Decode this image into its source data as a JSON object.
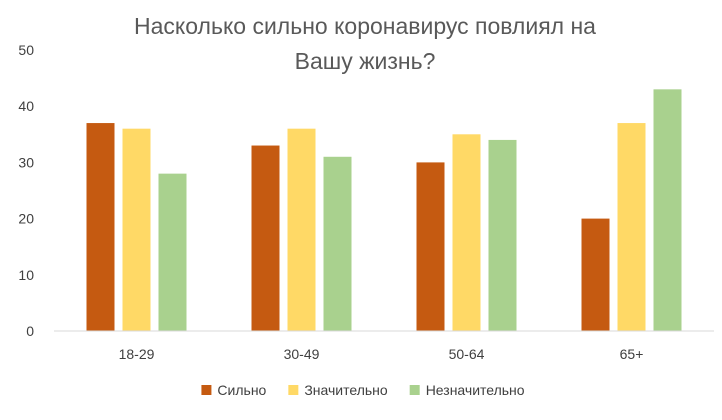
{
  "chart_data": {
    "type": "bar",
    "title_lines": [
      "Насколько сильно коронавирус повлиял на",
      "Вашу жизнь?"
    ],
    "categories": [
      "18-29",
      "30-49",
      "50-64",
      "65+"
    ],
    "series": [
      {
        "name": "Сильно",
        "color": "#C55A11",
        "values": [
          37,
          33,
          30,
          20
        ]
      },
      {
        "name": "Значительно",
        "color": "#FFD966",
        "values": [
          36,
          36,
          35,
          37
        ]
      },
      {
        "name": "Незначительно",
        "color": "#A9D18E",
        "values": [
          28,
          31,
          34,
          43
        ]
      }
    ],
    "ylim": [
      0,
      50
    ],
    "yticks": [
      0,
      10,
      20,
      30,
      40,
      50
    ],
    "grid": false,
    "legend_position": "bottom"
  }
}
